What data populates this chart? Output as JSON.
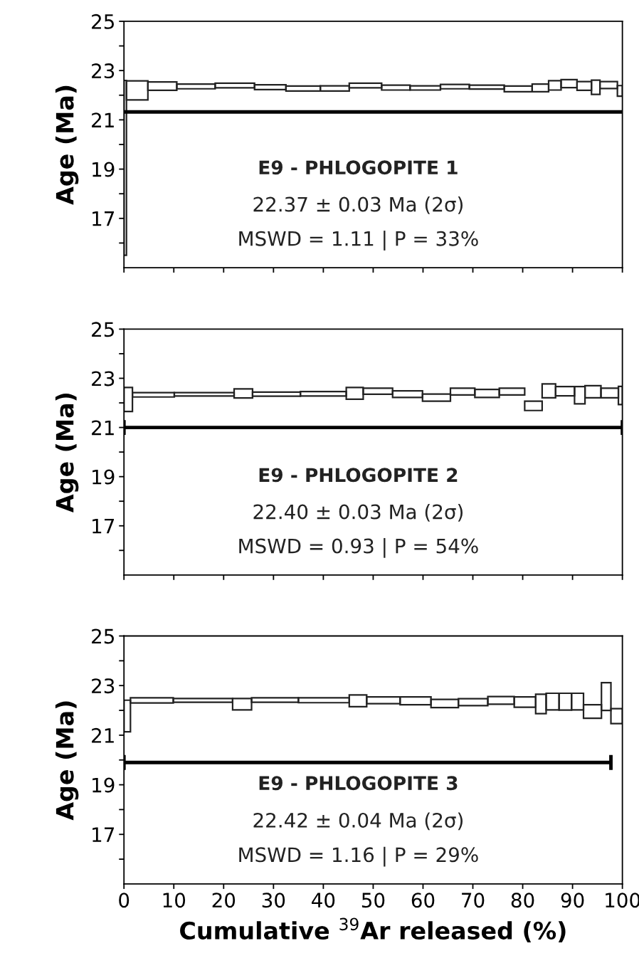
{
  "chart_data": [
    {
      "type": "bar",
      "ylabel": "Age (Ma)",
      "xlim": [
        0,
        100
      ],
      "ylim": [
        15,
        25
      ],
      "xticks": [
        0,
        10,
        20,
        30,
        40,
        50,
        60,
        70,
        80,
        90,
        100
      ],
      "yticks": [
        {
          "value": 16,
          "label": null
        },
        17,
        {
          "value": 18,
          "label": null
        },
        19,
        {
          "value": 20,
          "label": null
        },
        21,
        {
          "value": 22,
          "label": null
        },
        23,
        {
          "value": 24,
          "label": null
        },
        25
      ],
      "tick_labels": "y",
      "grid": false,
      "series": [
        {
          "color": "#222222",
          "x": [
            0.25,
            2.65,
            7.7,
            14.45,
            22.25,
            29.35,
            35.95,
            42.3,
            48.45,
            54.55,
            60.45,
            66.4,
            72.8,
            79.1,
            83.55,
            86.45,
            89.3,
            92.35,
            94.65,
            97.25,
            99.5
          ],
          "base": [
            15.5,
            21.81,
            22.2,
            22.26,
            22.3,
            22.23,
            22.17,
            22.17,
            22.3,
            22.21,
            22.21,
            22.26,
            22.25,
            22.14,
            22.14,
            22.21,
            22.31,
            22.2,
            22.03,
            22.27,
            21.96
          ],
          "values": [
            7.1,
            0.77,
            0.34,
            0.19,
            0.19,
            0.19,
            0.2,
            0.21,
            0.19,
            0.2,
            0.17,
            0.18,
            0.16,
            0.23,
            0.31,
            0.38,
            0.32,
            0.35,
            0.58,
            0.28,
            0.43
          ]
        },
        {
          "type": "line",
          "color": "#000000",
          "x": [
            0,
            100
          ],
          "values": [
            21.32,
            21.32
          ]
        }
      ],
      "annotations": [
        "E9 - PHLOGOPITE 1",
        "22.37 ± 0.03 Ma (2σ)",
        "MSWD = 1.11 | P = 33%"
      ]
    },
    {
      "type": "bar",
      "ylabel": "Age (Ma)",
      "xlim": [
        0,
        100
      ],
      "ylim": [
        15,
        25
      ],
      "xticks": [
        0,
        10,
        20,
        30,
        40,
        50,
        60,
        70,
        80,
        90,
        100
      ],
      "yticks": [
        {
          "value": 16,
          "label": null
        },
        17,
        {
          "value": 18,
          "label": null
        },
        19,
        {
          "value": 20,
          "label": null
        },
        21,
        {
          "value": 22,
          "label": null
        },
        23,
        {
          "value": 24,
          "label": null
        },
        25
      ],
      "tick_labels": "y",
      "grid": false,
      "series": [
        {
          "color": "#222222",
          "x": [
            0.85,
            5.9,
            16.1,
            23.95,
            30.6,
            40.0,
            46.3,
            50.95,
            56.9,
            62.7,
            67.95,
            72.85,
            77.85,
            82.15,
            85.25,
            88.5,
            91.45,
            94.1,
            97.45,
            99.6
          ],
          "base": [
            21.65,
            22.24,
            22.28,
            22.2,
            22.27,
            22.28,
            22.15,
            22.35,
            22.22,
            22.07,
            22.32,
            22.22,
            22.32,
            21.69,
            22.21,
            22.29,
            21.96,
            22.21,
            22.21,
            21.93
          ],
          "values": [
            0.98,
            0.18,
            0.14,
            0.37,
            0.17,
            0.18,
            0.48,
            0.25,
            0.27,
            0.29,
            0.28,
            0.33,
            0.28,
            0.38,
            0.56,
            0.37,
            0.7,
            0.49,
            0.39,
            0.74
          ]
        },
        {
          "type": "line",
          "color": "#000000",
          "x": [
            0,
            100
          ],
          "values": [
            21.0,
            21.0
          ],
          "errors": [
            0.3,
            0.3
          ]
        }
      ],
      "annotations": [
        "E9 - PHLOGOPITE 2",
        "22.40 ± 0.03 Ma (2σ)",
        "MSWD = 0.93 | P = 54%"
      ]
    },
    {
      "type": "bar",
      "ylabel": "Age (Ma)",
      "xlabel": "Cumulative $^{39}$Ar released (%)",
      "xlim": [
        0,
        100
      ],
      "ylim": [
        15,
        25
      ],
      "xticks": [
        0,
        10,
        20,
        30,
        40,
        50,
        60,
        70,
        80,
        90,
        100
      ],
      "yticks": [
        {
          "value": 16,
          "label": null
        },
        17,
        {
          "value": 18,
          "label": null
        },
        19,
        {
          "value": 20,
          "label": null
        },
        21,
        {
          "value": 22,
          "label": null
        },
        23,
        {
          "value": 24,
          "label": null
        },
        25
      ],
      "grid": false,
      "series": [
        {
          "color": "#222222",
          "x": [
            0.65,
            5.6,
            15.85,
            23.7,
            30.3,
            40.1,
            46.95,
            52.05,
            58.5,
            64.35,
            70.05,
            75.65,
            80.45,
            83.65,
            86.0,
            88.55,
            91.0,
            94.0,
            96.75,
            98.85
          ],
          "base": [
            21.14,
            22.3,
            22.33,
            22.02,
            22.33,
            22.31,
            22.15,
            22.27,
            22.23,
            22.11,
            22.19,
            22.25,
            22.13,
            21.87,
            22.02,
            22.01,
            22.02,
            21.68,
            22.0,
            21.47
          ],
          "values": [
            1.27,
            0.21,
            0.15,
            0.46,
            0.18,
            0.2,
            0.47,
            0.27,
            0.31,
            0.33,
            0.28,
            0.31,
            0.41,
            0.78,
            0.67,
            0.68,
            0.67,
            0.55,
            1.12,
            0.6
          ]
        },
        {
          "type": "line",
          "color": "#000000",
          "x": [
            0,
            97.7
          ],
          "values": [
            19.9,
            19.9
          ],
          "errors": [
            0.3,
            0.3
          ]
        }
      ],
      "annotations": [
        "E9 - PHLOGOPITE 3",
        "22.42 ± 0.04 Ma (2σ)",
        "MSWD = 1.16 | P = 29%"
      ]
    }
  ]
}
